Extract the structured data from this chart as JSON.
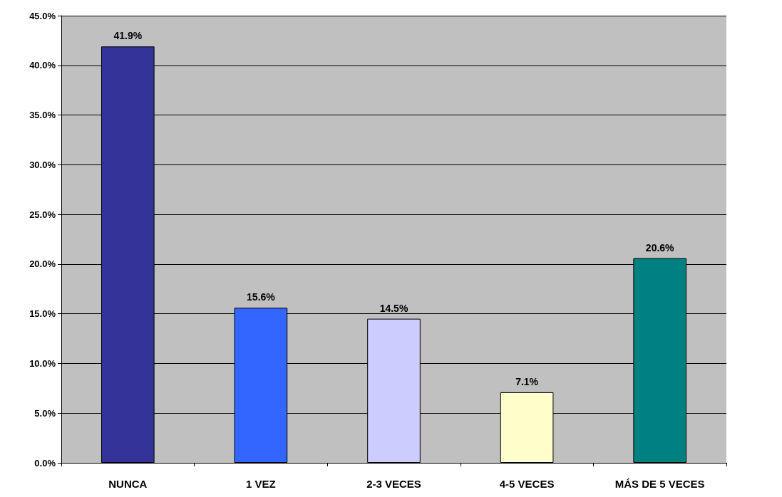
{
  "chart_data": {
    "type": "bar",
    "categories": [
      "NUNCA",
      "1 VEZ",
      "2-3 VECES",
      "4-5 VECES",
      "MÁS DE 5 VECES"
    ],
    "values": [
      41.9,
      15.6,
      14.5,
      7.1,
      20.6
    ],
    "colors": [
      "#333399",
      "#3366ff",
      "#ccccff",
      "#ffffcc",
      "#008080"
    ],
    "value_labels": [
      "41.9%",
      "15.6%",
      "14.5%",
      "7.1%",
      "20.6%"
    ],
    "ylim": [
      0,
      45
    ],
    "yticks": [
      {
        "value": 0,
        "label": "0.0%"
      },
      {
        "value": 5,
        "label": "5.0%"
      },
      {
        "value": 10,
        "label": "10.0%"
      },
      {
        "value": 15,
        "label": "15.0%"
      },
      {
        "value": 20,
        "label": "20.0%"
      },
      {
        "value": 25,
        "label": "25.0%"
      },
      {
        "value": 30,
        "label": "30.0%"
      },
      {
        "value": 35,
        "label": "35.0%"
      },
      {
        "value": 40,
        "label": "40.0%"
      },
      {
        "value": 45,
        "label": "45.0%"
      }
    ],
    "grid": "y"
  }
}
